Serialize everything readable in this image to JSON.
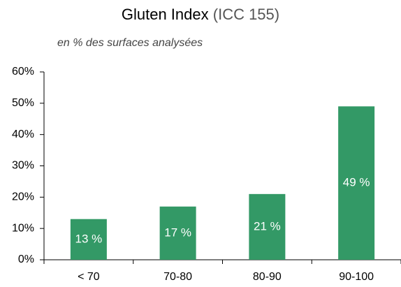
{
  "chart_data": {
    "type": "bar",
    "title": "Gluten Index",
    "title_note": "(ICC 155)",
    "subtitle": "en % des surfaces analysées",
    "categories": [
      "< 70",
      "70-80",
      "80-90",
      "90-100"
    ],
    "values": [
      13,
      17,
      21,
      49
    ],
    "value_labels": [
      "13 %",
      "17 %",
      "21 %",
      "49 %"
    ],
    "color": "#339966",
    "ylim": [
      0,
      60
    ],
    "yticks": [
      {
        "value": 0,
        "label": "0%"
      },
      {
        "value": 10,
        "label": "10%"
      },
      {
        "value": 20,
        "label": "20%"
      },
      {
        "value": 30,
        "label": "30%"
      },
      {
        "value": 40,
        "label": "40%"
      },
      {
        "value": 50,
        "label": "50%"
      },
      {
        "value": 60,
        "label": "60%"
      }
    ],
    "grid": false
  }
}
